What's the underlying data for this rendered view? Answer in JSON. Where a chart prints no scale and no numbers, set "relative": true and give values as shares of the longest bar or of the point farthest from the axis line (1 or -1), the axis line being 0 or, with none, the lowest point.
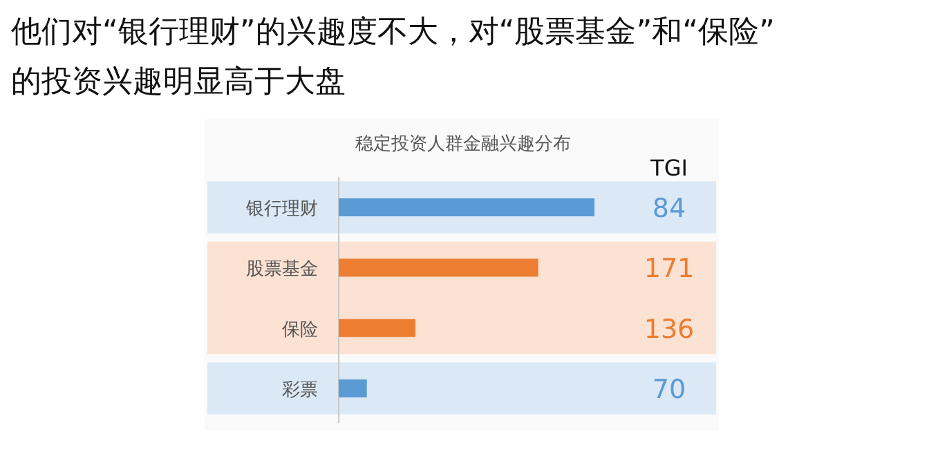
{
  "chart_data": {
    "type": "bar",
    "orientation": "horizontal",
    "relative": true,
    "title": "他们对“银行理财”的兴趣度不大，对“股票基金”和“保险”的投资兴趣明显高于大盘",
    "subtitle": "稳定投资人群金融兴趣分布",
    "categories": [
      "银行理财",
      "股票基金",
      "保险",
      "彩票"
    ],
    "values": [
      1,
      0.78,
      0.3,
      0.11
    ],
    "colors": [
      "#5b9bd5",
      "#ed7d31",
      "#ed7d31",
      "#5b9bd5"
    ],
    "annotations": [
      "TGI",
      "84",
      "171",
      "136",
      "70"
    ]
  }
}
